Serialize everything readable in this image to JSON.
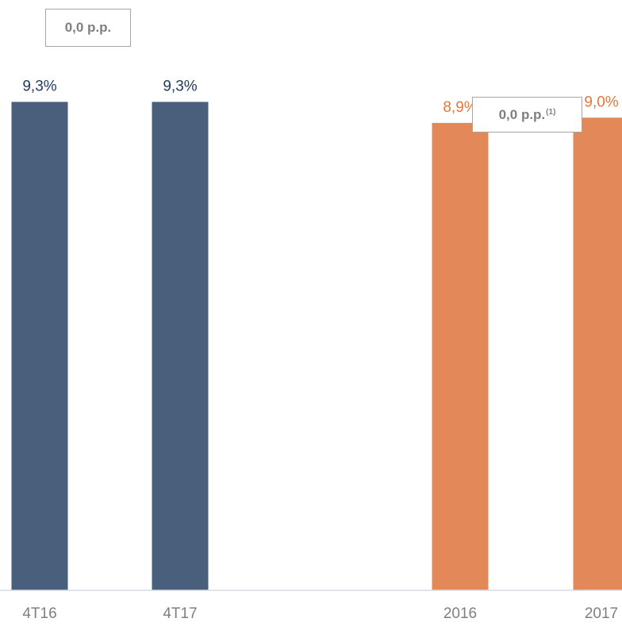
{
  "chart_data": {
    "type": "bar",
    "categories": [
      "4T16",
      "4T17",
      "2016",
      "2017"
    ],
    "values": [
      9.3,
      9.3,
      8.9,
      9.0
    ],
    "value_labels": [
      "9,3%",
      "9,3%",
      "8,9%",
      "9,0%"
    ],
    "bar_colors": [
      "#4a5f7c",
      "#4a5f7c",
      "#e28859",
      "#e28859"
    ],
    "label_colors": [
      "#1f3a5f",
      "#1f3a5f",
      "#e0793f",
      "#e0793f"
    ],
    "ylim": [
      0,
      10.5
    ],
    "grid": false,
    "annotations": [
      {
        "id": "quarter-change",
        "text": "0,0 p.p.",
        "sup": ""
      },
      {
        "id": "annual-change",
        "text": "0,0 p.p.",
        "sup": "(1)"
      }
    ]
  },
  "colors": {
    "axis": "#d6dce5",
    "tick_text": "#7f7f7f",
    "box_border": "#a6a6a6",
    "box_text": "#7f7f7f"
  }
}
